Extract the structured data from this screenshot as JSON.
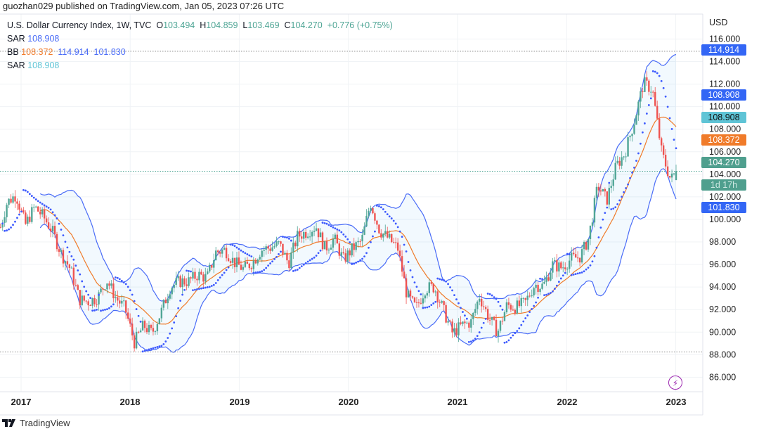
{
  "header": {
    "published": "guozhan029 published on TradingView.com, Jan 05, 2023 07:26 UTC"
  },
  "legend": {
    "symbol": "U.S. Dollar Currency Index, 1W, TVC",
    "o_label": "O",
    "o": "103.494",
    "h_label": "H",
    "h": "104.859",
    "l_label": "L",
    "l": "103.469",
    "c_label": "C",
    "c": "104.270",
    "change": "+0.776 (+0.75%)",
    "sar1_label": "SAR",
    "sar1": "108.908",
    "bb_label": "BB",
    "bb_basis": "108.372",
    "bb_upper": "114.914",
    "bb_lower": "101.830",
    "sar2_label": "SAR",
    "sar2": "108.908"
  },
  "price_axis": {
    "currency": "USD",
    "ticks": [
      "116.000",
      "114.000",
      "112.000",
      "110.000",
      "108.000",
      "106.000",
      "104.000",
      "102.000",
      "100.000",
      "98.000",
      "96.000",
      "94.000",
      "92.000",
      "90.000",
      "88.000",
      "86.000"
    ],
    "badges": [
      {
        "value": "114.914",
        "color": "#3366f5"
      },
      {
        "value": "108.908",
        "color": "#3366f5"
      },
      {
        "value": "108.908",
        "color": "#5fc4d6"
      },
      {
        "value": "108.372",
        "color": "#f07b2a"
      },
      {
        "value": "104.270",
        "sub": "1d 17h",
        "color": "#4f9f8e"
      },
      {
        "value": "101.830",
        "color": "#3366f5"
      }
    ]
  },
  "time_axis": {
    "ticks": [
      "2017",
      "2018",
      "2019",
      "2020",
      "2021",
      "2022",
      "2023"
    ]
  },
  "footer": {
    "brand": "TradingView"
  },
  "colors": {
    "up": "#4fa595",
    "down": "#ef5350",
    "bb_band": "#4a6cf7",
    "bb_basis": "#f07b2a",
    "sar": "#3d5afe"
  },
  "chart_data": {
    "type": "candlestick",
    "title": "U.S. Dollar Currency Index, 1W, TVC",
    "interval": "1W",
    "ylabel": "USD",
    "ylim": [
      85,
      117
    ],
    "xlim": [
      "2016-10",
      "2023-01"
    ],
    "grid": true,
    "indicators": [
      "Parabolic SAR",
      "Bollinger Bands (20, 2)"
    ],
    "monthly_closes": [
      [
        "2016-10",
        98.4
      ],
      [
        "2016-11",
        101.5
      ],
      [
        "2016-12",
        102.2
      ],
      [
        "2017-01",
        99.5
      ],
      [
        "2017-02",
        101.1
      ],
      [
        "2017-03",
        100.3
      ],
      [
        "2017-04",
        99.0
      ],
      [
        "2017-05",
        97.0
      ],
      [
        "2017-06",
        95.6
      ],
      [
        "2017-07",
        92.9
      ],
      [
        "2017-08",
        92.7
      ],
      [
        "2017-09",
        93.1
      ],
      [
        "2017-10",
        94.6
      ],
      [
        "2017-11",
        93.0
      ],
      [
        "2017-12",
        92.1
      ],
      [
        "2018-01",
        89.1
      ],
      [
        "2018-02",
        90.6
      ],
      [
        "2018-03",
        89.9
      ],
      [
        "2018-04",
        91.8
      ],
      [
        "2018-05",
        94.0
      ],
      [
        "2018-06",
        94.5
      ],
      [
        "2018-07",
        94.5
      ],
      [
        "2018-08",
        95.1
      ],
      [
        "2018-09",
        94.8
      ],
      [
        "2018-10",
        97.1
      ],
      [
        "2018-11",
        97.3
      ],
      [
        "2018-12",
        96.2
      ],
      [
        "2019-01",
        95.6
      ],
      [
        "2019-02",
        96.2
      ],
      [
        "2019-03",
        97.3
      ],
      [
        "2019-04",
        97.5
      ],
      [
        "2019-05",
        97.8
      ],
      [
        "2019-06",
        96.1
      ],
      [
        "2019-07",
        98.5
      ],
      [
        "2019-08",
        98.9
      ],
      [
        "2019-09",
        99.4
      ],
      [
        "2019-10",
        97.4
      ],
      [
        "2019-11",
        98.3
      ],
      [
        "2019-12",
        96.4
      ],
      [
        "2020-01",
        97.4
      ],
      [
        "2020-02",
        98.1
      ],
      [
        "2020-03",
        101.5
      ],
      [
        "2020-04",
        99.0
      ],
      [
        "2020-05",
        98.3
      ],
      [
        "2020-06",
        97.4
      ],
      [
        "2020-07",
        93.3
      ],
      [
        "2020-08",
        92.1
      ],
      [
        "2020-09",
        93.9
      ],
      [
        "2020-10",
        94.0
      ],
      [
        "2020-11",
        91.9
      ],
      [
        "2020-12",
        89.9
      ],
      [
        "2021-01",
        90.6
      ],
      [
        "2021-02",
        90.9
      ],
      [
        "2021-03",
        93.2
      ],
      [
        "2021-04",
        91.3
      ],
      [
        "2021-05",
        90.0
      ],
      [
        "2021-06",
        92.4
      ],
      [
        "2021-07",
        92.2
      ],
      [
        "2021-08",
        92.6
      ],
      [
        "2021-09",
        94.2
      ],
      [
        "2021-10",
        94.1
      ],
      [
        "2021-11",
        96.0
      ],
      [
        "2021-12",
        95.7
      ],
      [
        "2022-01",
        96.5
      ],
      [
        "2022-02",
        96.7
      ],
      [
        "2022-03",
        98.3
      ],
      [
        "2022-04",
        103.0
      ],
      [
        "2022-05",
        101.7
      ],
      [
        "2022-06",
        104.7
      ],
      [
        "2022-07",
        105.9
      ],
      [
        "2022-08",
        108.7
      ],
      [
        "2022-09",
        112.1
      ],
      [
        "2022-10",
        111.5
      ],
      [
        "2022-11",
        105.9
      ],
      [
        "2022-12",
        103.5
      ],
      [
        "2023-01",
        104.27
      ]
    ],
    "last_bar": {
      "open": 103.494,
      "high": 104.859,
      "low": 103.469,
      "close": 104.27
    },
    "horizontal_lines": [
      114.914,
      104.27,
      88.25
    ]
  }
}
